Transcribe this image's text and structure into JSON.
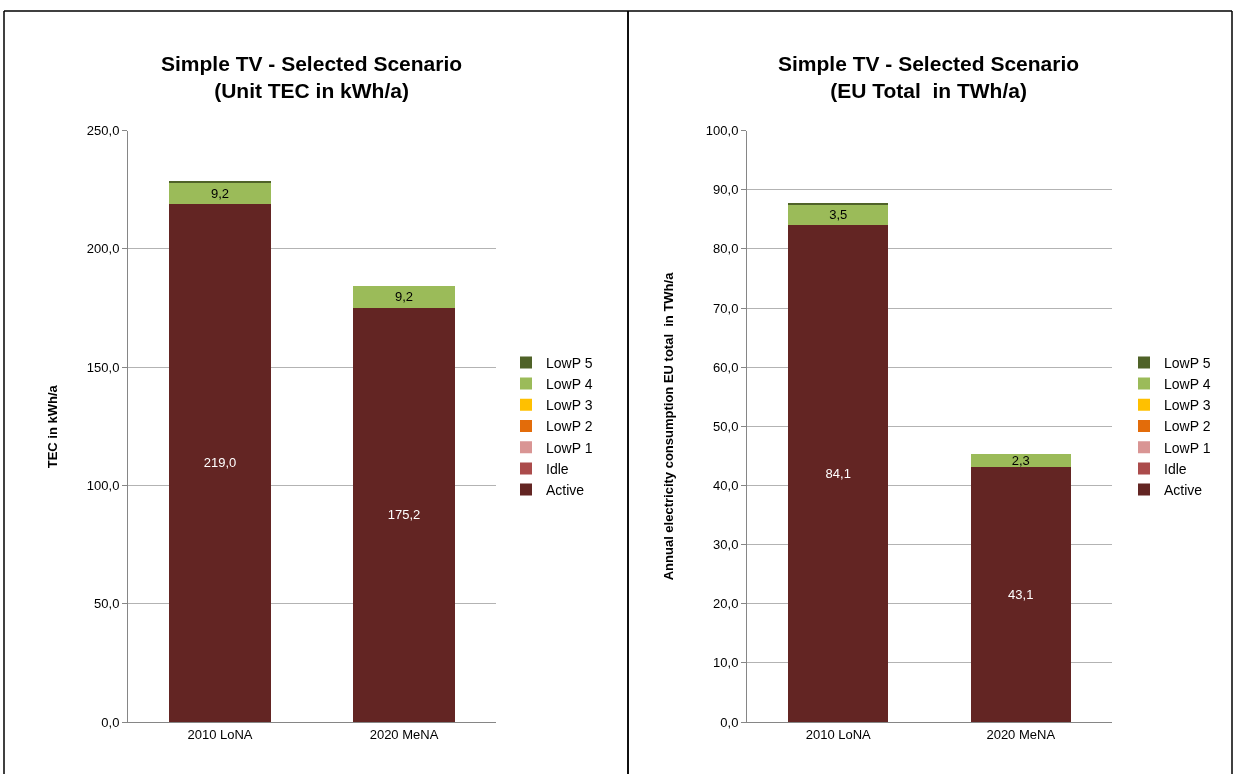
{
  "chart_data": [
    {
      "type": "bar",
      "title": "Simple TV - Selected Scenario\n(Unit TEC in kWh/a)",
      "ylabel": "TEC in kWh/a",
      "categories": [
        "2010 LoNA",
        "2020 MeNA"
      ],
      "stacked": true,
      "grid": "y",
      "legend": "right",
      "ylim": [
        0,
        250
      ],
      "yticks": [
        {
          "value": 0,
          "label": "0,0"
        },
        {
          "value": 50,
          "label": "50,0"
        },
        {
          "value": 100,
          "label": "100,0"
        },
        {
          "value": 150,
          "label": "150,0"
        },
        {
          "value": 200,
          "label": "200,0"
        },
        {
          "value": 250,
          "label": "250,0"
        }
      ],
      "series": [
        {
          "name": "Active",
          "color": "#632523",
          "values": [
            219.0,
            175.2
          ],
          "value_labels": [
            "219,0",
            "175,2"
          ]
        },
        {
          "name": "Idle",
          "color": "#ab4b4b",
          "values": [
            0,
            0
          ]
        },
        {
          "name": "LowP 1",
          "color": "#d99594",
          "values": [
            0,
            0
          ]
        },
        {
          "name": "LowP 2",
          "color": "#e36c0a",
          "values": [
            0,
            0
          ]
        },
        {
          "name": "LowP 3",
          "color": "#ffc000",
          "values": [
            0,
            0
          ]
        },
        {
          "name": "LowP 4",
          "color": "#9bbb59",
          "values": [
            9.2,
            9.2
          ],
          "value_labels": [
            "9,2",
            "9,2"
          ]
        },
        {
          "name": "LowP 5",
          "color": "#4f6228",
          "values": [
            0.5,
            0
          ]
        }
      ]
    },
    {
      "type": "bar",
      "title": "Simple TV - Selected Scenario\n(EU Total  in TWh/a)",
      "ylabel": "Annual electricity consumption EU total  in TWh/a",
      "categories": [
        "2010 LoNA",
        "2020 MeNA"
      ],
      "stacked": true,
      "grid": "y",
      "legend": "right",
      "ylim": [
        0,
        100
      ],
      "yticks": [
        {
          "value": 0,
          "label": "0,0"
        },
        {
          "value": 10,
          "label": "10,0"
        },
        {
          "value": 20,
          "label": "20,0"
        },
        {
          "value": 30,
          "label": "30,0"
        },
        {
          "value": 40,
          "label": "40,0"
        },
        {
          "value": 50,
          "label": "50,0"
        },
        {
          "value": 60,
          "label": "60,0"
        },
        {
          "value": 70,
          "label": "70,0"
        },
        {
          "value": 80,
          "label": "80,0"
        },
        {
          "value": 90,
          "label": "90,0"
        },
        {
          "value": 100,
          "label": "100,0"
        }
      ],
      "series": [
        {
          "name": "Active",
          "color": "#632523",
          "values": [
            84.1,
            43.1
          ],
          "value_labels": [
            "84,1",
            "43,1"
          ]
        },
        {
          "name": "Idle",
          "color": "#ab4b4b",
          "values": [
            0,
            0
          ]
        },
        {
          "name": "LowP 1",
          "color": "#d99594",
          "values": [
            0,
            0
          ]
        },
        {
          "name": "LowP 2",
          "color": "#e36c0a",
          "values": [
            0,
            0
          ]
        },
        {
          "name": "LowP 3",
          "color": "#ffc000",
          "values": [
            0,
            0
          ]
        },
        {
          "name": "LowP 4",
          "color": "#9bbb59",
          "values": [
            3.5,
            2.3
          ],
          "value_labels": [
            "3,5",
            "2,3"
          ]
        },
        {
          "name": "LowP 5",
          "color": "#4f6228",
          "values": [
            0.2,
            0
          ]
        }
      ]
    }
  ]
}
